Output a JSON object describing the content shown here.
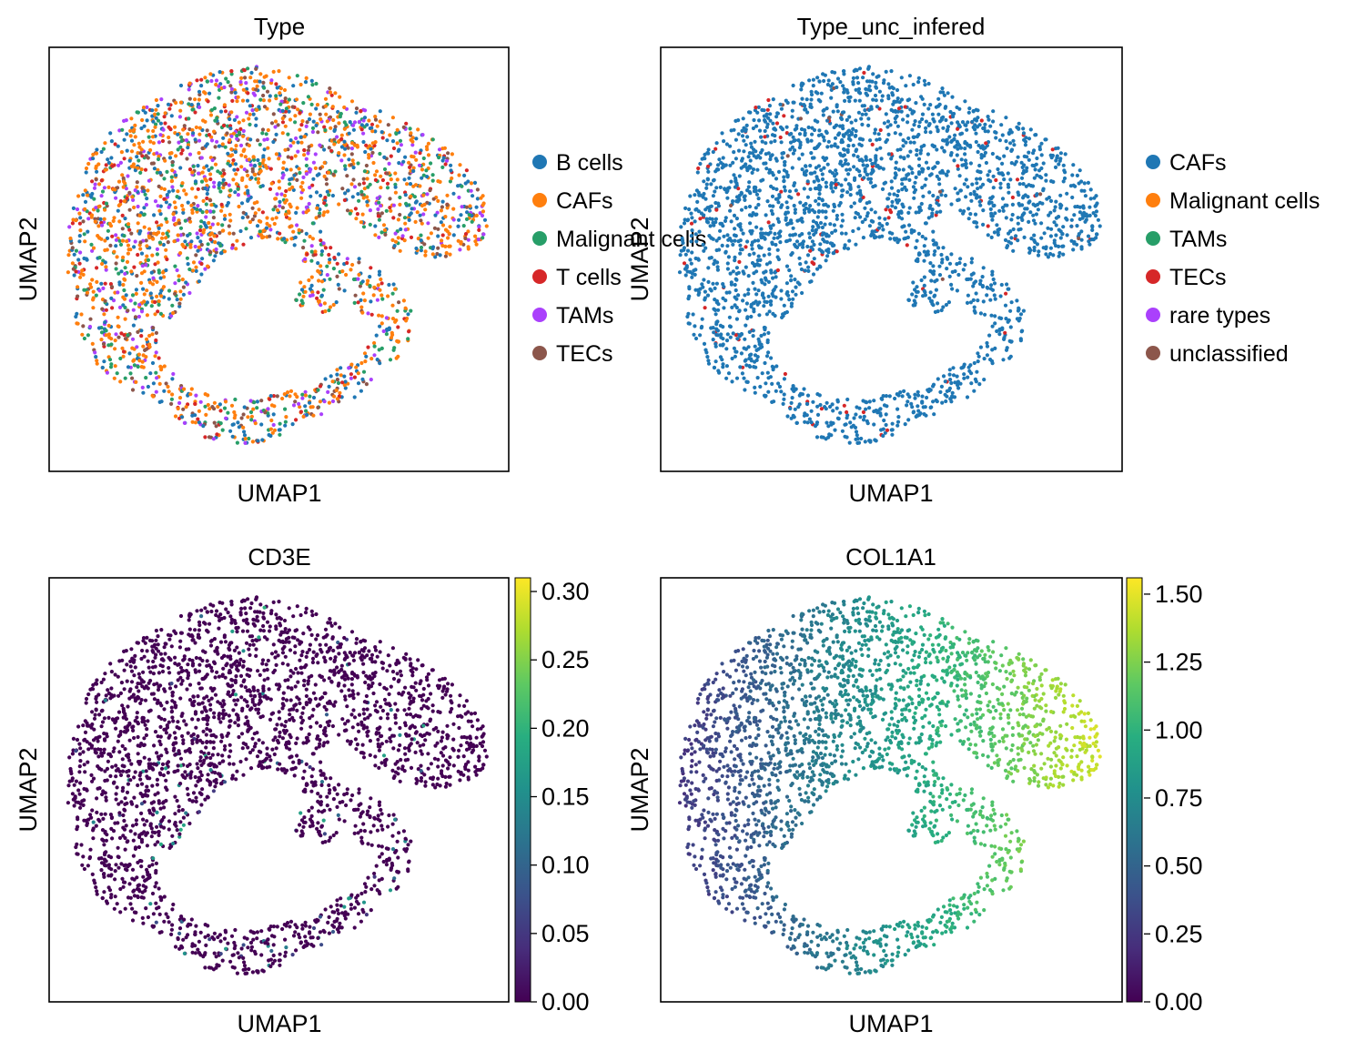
{
  "chart_data": [
    {
      "type": "scatter",
      "title": "Type",
      "xlabel": "UMAP1",
      "ylabel": "UMAP2",
      "grid": false,
      "legend_placement": "right",
      "color_mode": "categorical",
      "categories": [
        {
          "name": "B cells",
          "color": "#1f77b4"
        },
        {
          "name": "CAFs",
          "color": "#ff7f0e"
        },
        {
          "name": "Malignant cells",
          "color": "#279e68"
        },
        {
          "name": "T cells",
          "color": "#d62728"
        },
        {
          "name": "TAMs",
          "color": "#aa40fc"
        },
        {
          "name": "TECs",
          "color": "#8c564b"
        }
      ],
      "category_mix": [
        0.2,
        0.35,
        0.14,
        0.08,
        0.13,
        0.1
      ]
    },
    {
      "type": "scatter",
      "title": "Type_unc_infered",
      "xlabel": "UMAP1",
      "ylabel": "UMAP2",
      "grid": false,
      "legend_placement": "right",
      "color_mode": "categorical",
      "categories": [
        {
          "name": "CAFs",
          "color": "#1f77b4"
        },
        {
          "name": "Malignant cells",
          "color": "#ff7f0e"
        },
        {
          "name": "TAMs",
          "color": "#279e68"
        },
        {
          "name": "TECs",
          "color": "#d62728"
        },
        {
          "name": "rare types",
          "color": "#aa40fc"
        },
        {
          "name": "unclassified",
          "color": "#8c564b"
        }
      ],
      "category_mix": [
        0.965,
        0.0,
        0.0,
        0.03,
        0.0,
        0.005
      ]
    },
    {
      "type": "scatter",
      "title": "CD3E",
      "xlabel": "UMAP1",
      "ylabel": "UMAP2",
      "grid": false,
      "color_mode": "continuous",
      "colormap": "viridis",
      "colorbar_range": [
        0,
        0.31
      ],
      "colorbar_ticks": [
        "0.00",
        "0.05",
        "0.10",
        "0.15",
        "0.20",
        "0.25",
        "0.30"
      ]
    },
    {
      "type": "scatter",
      "title": "COL1A1",
      "xlabel": "UMAP1",
      "ylabel": "UMAP2",
      "grid": false,
      "color_mode": "continuous",
      "colormap": "viridis",
      "colorbar_range": [
        0,
        1.56
      ],
      "colorbar_ticks": [
        "0.00",
        "0.25",
        "0.50",
        "0.75",
        "1.00",
        "1.25",
        "1.50"
      ]
    }
  ]
}
